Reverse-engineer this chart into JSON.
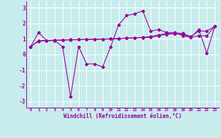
{
  "xlabel": "Windchill (Refroidissement éolien,°C)",
  "background_color": "#c8ecec",
  "line_color": "#990099",
  "xlim": [
    -0.5,
    23.5
  ],
  "ylim": [
    -3.4,
    3.4
  ],
  "yticks": [
    -3,
    -2,
    -1,
    0,
    1,
    2,
    3
  ],
  "xticks": [
    0,
    1,
    2,
    3,
    4,
    5,
    6,
    7,
    8,
    9,
    10,
    11,
    12,
    13,
    14,
    15,
    16,
    17,
    18,
    19,
    20,
    21,
    22,
    23
  ],
  "series": [
    [
      0.5,
      1.4,
      0.9,
      0.9,
      0.5,
      -2.7,
      0.5,
      -0.6,
      -0.6,
      -0.8,
      0.5,
      1.9,
      2.5,
      2.6,
      2.8,
      1.5,
      1.6,
      1.4,
      1.4,
      1.2,
      1.1,
      1.6,
      0.1,
      1.8
    ],
    [
      0.5,
      0.85,
      0.88,
      0.9,
      0.92,
      0.94,
      0.95,
      0.96,
      0.97,
      0.98,
      1.0,
      1.02,
      1.04,
      1.06,
      1.08,
      1.1,
      1.2,
      1.3,
      1.32,
      1.3,
      1.1,
      1.2,
      1.2,
      1.8
    ],
    [
      0.5,
      0.88,
      0.9,
      0.92,
      0.94,
      0.95,
      0.96,
      0.97,
      0.98,
      0.99,
      1.0,
      1.02,
      1.05,
      1.07,
      1.1,
      1.15,
      1.25,
      1.35,
      1.38,
      1.35,
      1.15,
      1.5,
      1.5,
      1.8
    ]
  ]
}
